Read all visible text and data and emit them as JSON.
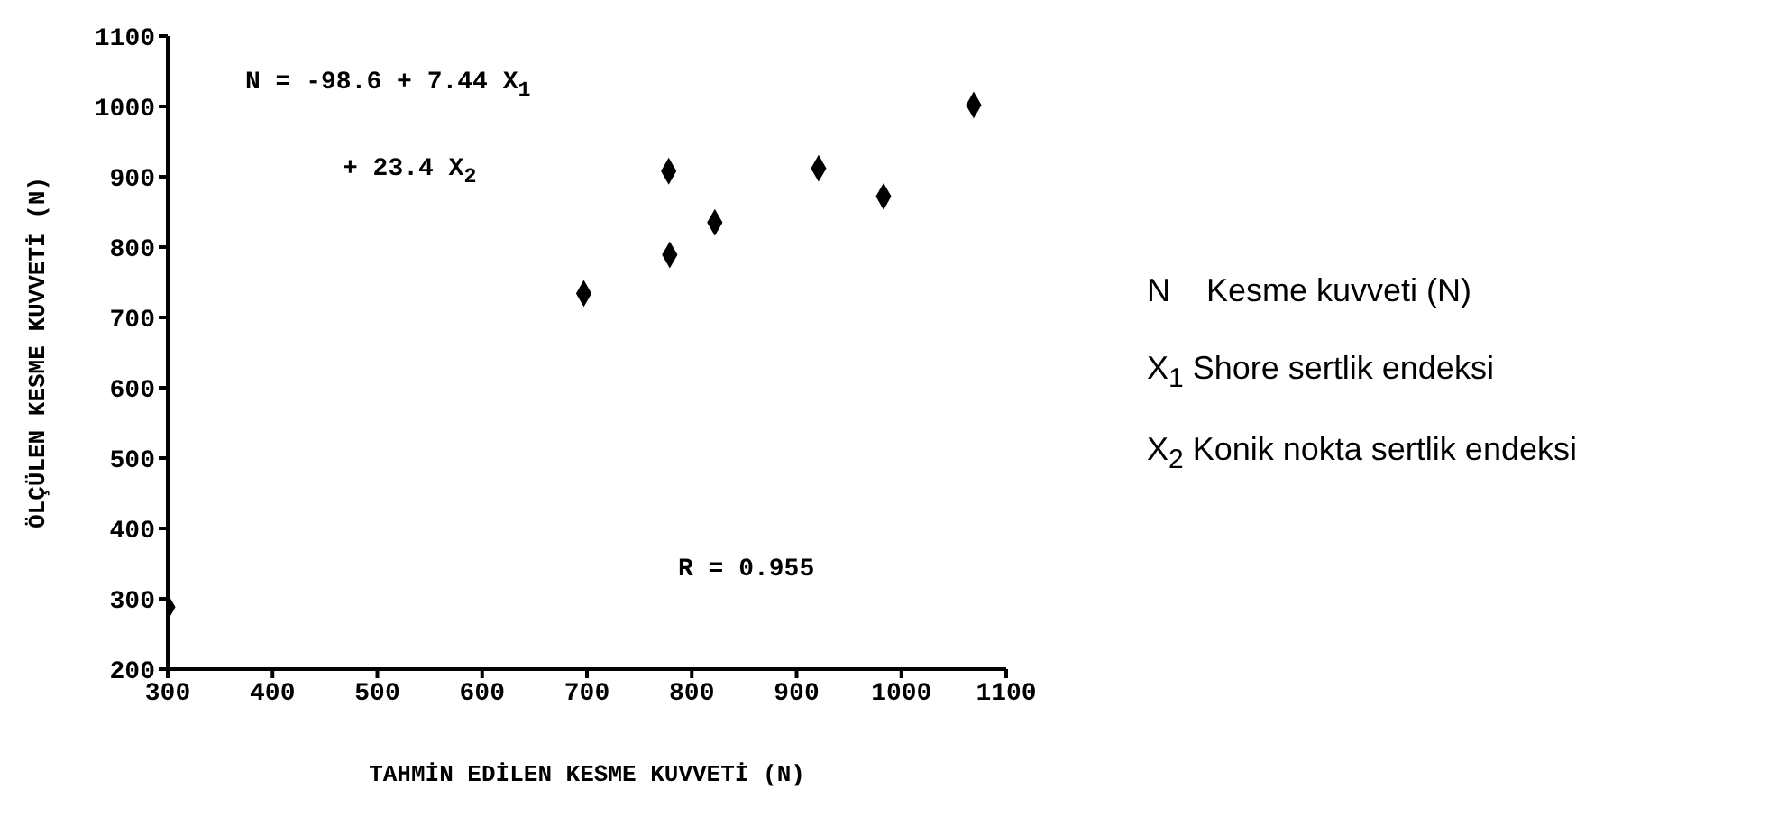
{
  "chart_data": {
    "type": "scatter",
    "xlabel": "TAHMİN EDİLEN KESME KUVVETİ (N)",
    "ylabel": "ÖLÇÜLEN KESME KUVVETİ (N)",
    "x": [
      300,
      697,
      778,
      779,
      822,
      921,
      983,
      1069
    ],
    "values": [
      288,
      734,
      908,
      789,
      835,
      912,
      872,
      1002
    ],
    "color": "#000000",
    "marker": "diamond",
    "xlim": [
      300,
      1100
    ],
    "xticks": [
      300,
      400,
      500,
      600,
      700,
      800,
      900,
      1000,
      1100
    ],
    "ylim": [
      200,
      1100
    ],
    "yticks": [
      200,
      300,
      400,
      500,
      600,
      700,
      800,
      900,
      1000,
      1100
    ],
    "grid": false,
    "legend": false,
    "annotations": [
      "N = -98.6 + 7.44 X$_{1}$",
      "+ 23.4 X$_{2}$",
      "R = 0.955",
      "N    Kesme kuvveti (N)",
      "X$_{1}$ Shore sertlik endeksi",
      "X$_{2}$ Konik nokta sertlik endeksi"
    ]
  }
}
